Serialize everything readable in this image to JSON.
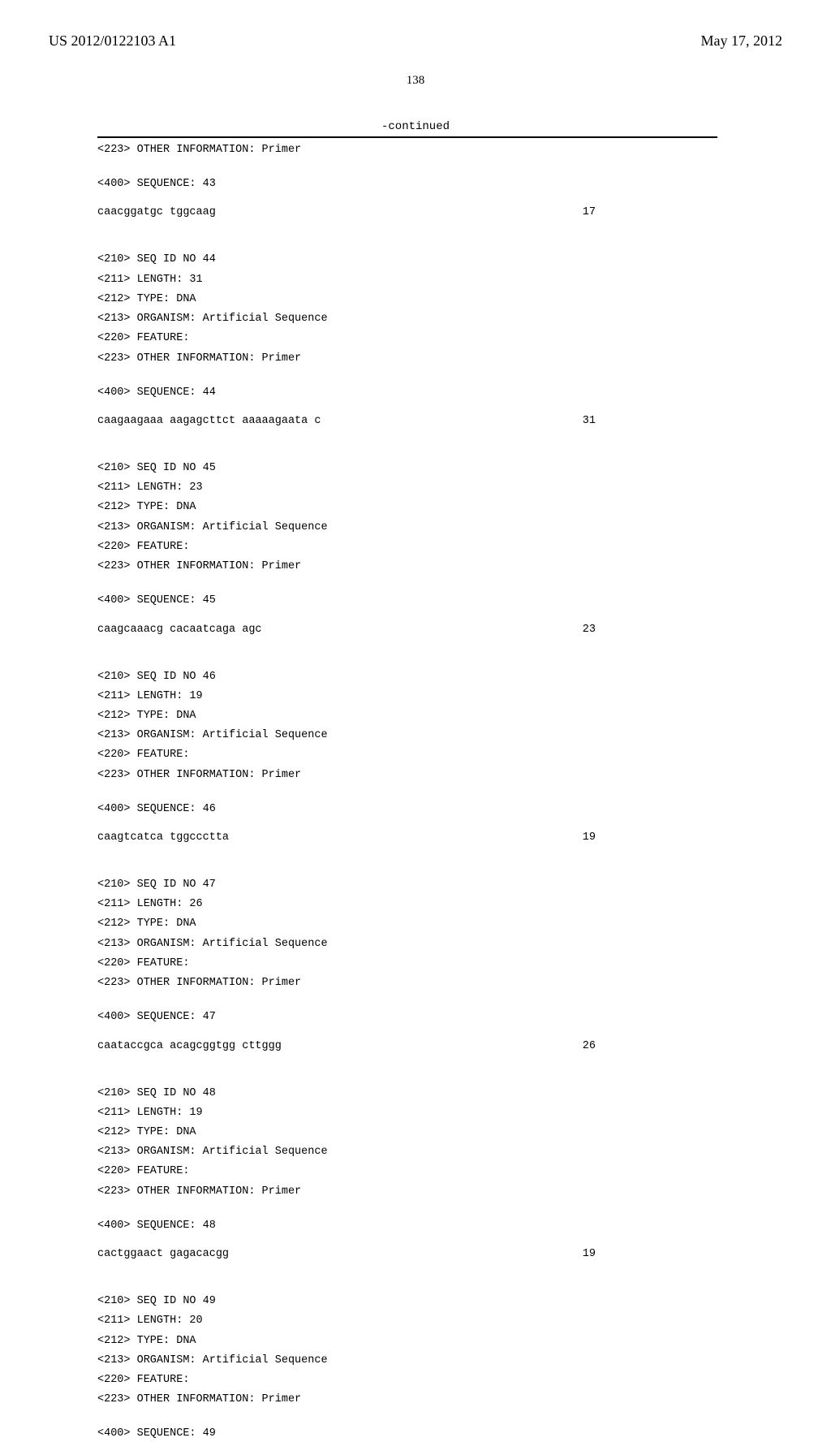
{
  "header": {
    "publication_number": "US 2012/0122103 A1",
    "publication_date": "May 17, 2012"
  },
  "page_number": "138",
  "continued_label": "-continued",
  "entries": [
    {
      "pre_lines": [
        "<223> OTHER INFORMATION: Primer"
      ],
      "seq_label": "<400> SEQUENCE: 43",
      "sequence": "caacggatgc tggcaag",
      "length": "17"
    },
    {
      "pre_lines": [
        "<210> SEQ ID NO 44",
        "<211> LENGTH: 31",
        "<212> TYPE: DNA",
        "<213> ORGANISM: Artificial Sequence",
        "<220> FEATURE:",
        "<223> OTHER INFORMATION: Primer"
      ],
      "seq_label": "<400> SEQUENCE: 44",
      "sequence": "caagaagaaa aagagcttct aaaaagaata c",
      "length": "31"
    },
    {
      "pre_lines": [
        "<210> SEQ ID NO 45",
        "<211> LENGTH: 23",
        "<212> TYPE: DNA",
        "<213> ORGANISM: Artificial Sequence",
        "<220> FEATURE:",
        "<223> OTHER INFORMATION: Primer"
      ],
      "seq_label": "<400> SEQUENCE: 45",
      "sequence": "caagcaaacg cacaatcaga agc",
      "length": "23"
    },
    {
      "pre_lines": [
        "<210> SEQ ID NO 46",
        "<211> LENGTH: 19",
        "<212> TYPE: DNA",
        "<213> ORGANISM: Artificial Sequence",
        "<220> FEATURE:",
        "<223> OTHER INFORMATION: Primer"
      ],
      "seq_label": "<400> SEQUENCE: 46",
      "sequence": "caagtcatca tggccctta",
      "length": "19"
    },
    {
      "pre_lines": [
        "<210> SEQ ID NO 47",
        "<211> LENGTH: 26",
        "<212> TYPE: DNA",
        "<213> ORGANISM: Artificial Sequence",
        "<220> FEATURE:",
        "<223> OTHER INFORMATION: Primer"
      ],
      "seq_label": "<400> SEQUENCE: 47",
      "sequence": "caataccgca acagcggtgg cttggg",
      "length": "26"
    },
    {
      "pre_lines": [
        "<210> SEQ ID NO 48",
        "<211> LENGTH: 19",
        "<212> TYPE: DNA",
        "<213> ORGANISM: Artificial Sequence",
        "<220> FEATURE:",
        "<223> OTHER INFORMATION: Primer"
      ],
      "seq_label": "<400> SEQUENCE: 48",
      "sequence": "cactggaact gagacacgg",
      "length": "19"
    },
    {
      "pre_lines": [
        "<210> SEQ ID NO 49",
        "<211> LENGTH: 20",
        "<212> TYPE: DNA",
        "<213> ORGANISM: Artificial Sequence",
        "<220> FEATURE:",
        "<223> OTHER INFORMATION: Primer"
      ],
      "seq_label": "<400> SEQUENCE: 49",
      "sequence": "",
      "length": ""
    }
  ]
}
